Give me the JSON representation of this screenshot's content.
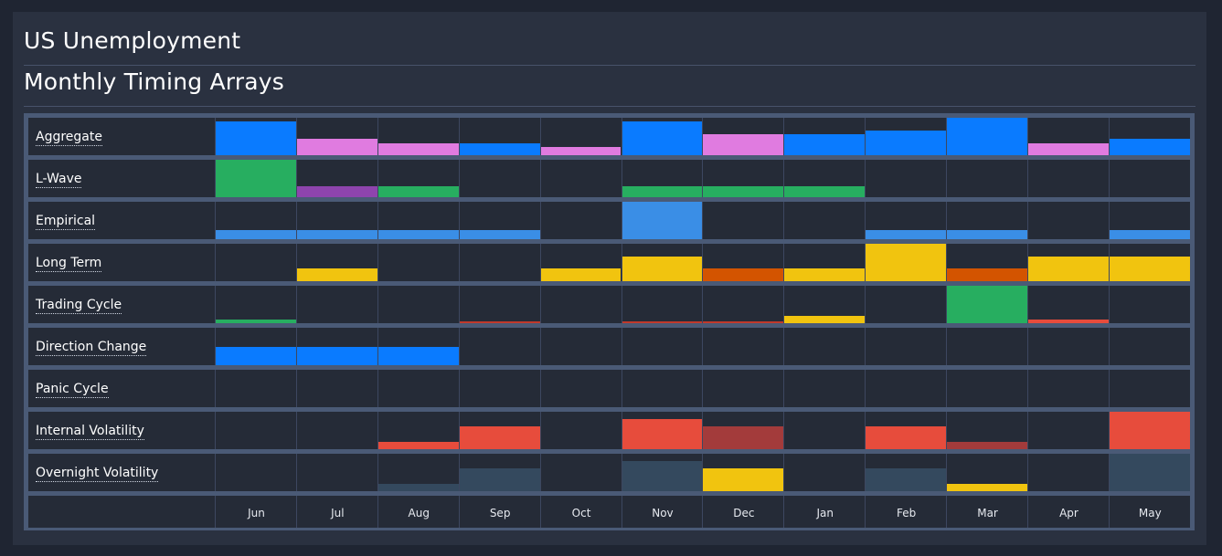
{
  "header": {
    "title": "US Unemployment",
    "subtitle": "Monthly Timing Arrays"
  },
  "chart_data": {
    "type": "heatmap",
    "categories": [
      "Jun",
      "Jul",
      "Aug",
      "Sep",
      "Oct",
      "Nov",
      "Dec",
      "Jan",
      "Feb",
      "Mar",
      "Apr",
      "May"
    ],
    "series": [
      {
        "name": "Aggregate",
        "values": [
          0.9,
          0.45,
          0.32,
          0.32,
          0.23,
          0.9,
          0.55,
          0.55,
          0.67,
          1.0,
          0.32,
          0.45
        ],
        "colors": [
          "#0a7bff",
          "#e07be0",
          "#e07be0",
          "#0a7bff",
          "#e07be0",
          "#0a7bff",
          "#e07be0",
          "#0a7bff",
          "#0a7bff",
          "#0a7bff",
          "#e07be0",
          "#0a7bff"
        ]
      },
      {
        "name": "L-Wave",
        "values": [
          1.0,
          0.3,
          0.3,
          0,
          0,
          0.3,
          0.3,
          0.3,
          0,
          0,
          0,
          0
        ],
        "colors": [
          "#27ae60",
          "#8e44ad",
          "#27ae60",
          "",
          "",
          "#27ae60",
          "#27ae60",
          "#27ae60",
          "",
          "",
          "",
          ""
        ]
      },
      {
        "name": "Empirical",
        "values": [
          0.25,
          0.25,
          0.25,
          0.25,
          0,
          1.0,
          0,
          0,
          0.25,
          0.25,
          0,
          0.25
        ],
        "colors": [
          "#3a8ee6",
          "#3a8ee6",
          "#3a8ee6",
          "#3a8ee6",
          "",
          "#3a8ee6",
          "",
          "",
          "#3a8ee6",
          "#3a8ee6",
          "",
          "#3a8ee6"
        ]
      },
      {
        "name": "Long Term",
        "values": [
          0,
          0.33,
          0,
          0,
          0.33,
          0.66,
          0.33,
          0.33,
          1.0,
          0.33,
          0.66,
          0.66
        ],
        "colors": [
          "",
          "#f1c40f",
          "",
          "",
          "#f1c40f",
          "#f1c40f",
          "#d35400",
          "#f1c40f",
          "#f1c40f",
          "#d35400",
          "#f1c40f",
          "#f1c40f"
        ]
      },
      {
        "name": "Trading Cycle",
        "values": [
          0.1,
          0,
          0,
          0.05,
          0,
          0.05,
          0.05,
          0.2,
          0,
          1.0,
          0.1,
          0
        ],
        "colors": [
          "#27ae60",
          "",
          "",
          "#c0392b",
          "",
          "#c0392b",
          "#c0392b",
          "#f1c40f",
          "",
          "#27ae60",
          "#e74c3c",
          ""
        ]
      },
      {
        "name": "Direction Change",
        "values": [
          0.5,
          0.5,
          0.5,
          0,
          0,
          0,
          0,
          0,
          0,
          0,
          0,
          0
        ],
        "colors": [
          "#0a7bff",
          "#0a7bff",
          "#0a7bff",
          "",
          "",
          "",
          "",
          "",
          "",
          "",
          "",
          ""
        ]
      },
      {
        "name": "Panic Cycle",
        "values": [
          0,
          0,
          0,
          0,
          0,
          0,
          0,
          0,
          0,
          0,
          0,
          0
        ],
        "colors": [
          "",
          "",
          "",
          "",
          "",
          "",
          "",
          "",
          "",
          "",
          "",
          ""
        ]
      },
      {
        "name": "Internal Volatility",
        "values": [
          0,
          0,
          0.2,
          0.6,
          0,
          0.8,
          0.6,
          0,
          0.6,
          0.2,
          0,
          1.0
        ],
        "colors": [
          "",
          "",
          "#e74c3c",
          "#e74c3c",
          "",
          "#e74c3c",
          "#a33b3b",
          "",
          "#e74c3c",
          "#a33b3b",
          "",
          "#e74c3c"
        ]
      },
      {
        "name": "Overnight Volatility",
        "values": [
          0,
          0,
          0.2,
          0.6,
          0,
          0.8,
          0.6,
          0,
          0.6,
          0.2,
          0,
          1.0
        ],
        "colors": [
          "",
          "",
          "#34495e",
          "#34495e",
          "",
          "#34495e",
          "#f1c40f",
          "",
          "#34495e",
          "#f1c40f",
          "",
          "#34495e"
        ]
      }
    ]
  }
}
